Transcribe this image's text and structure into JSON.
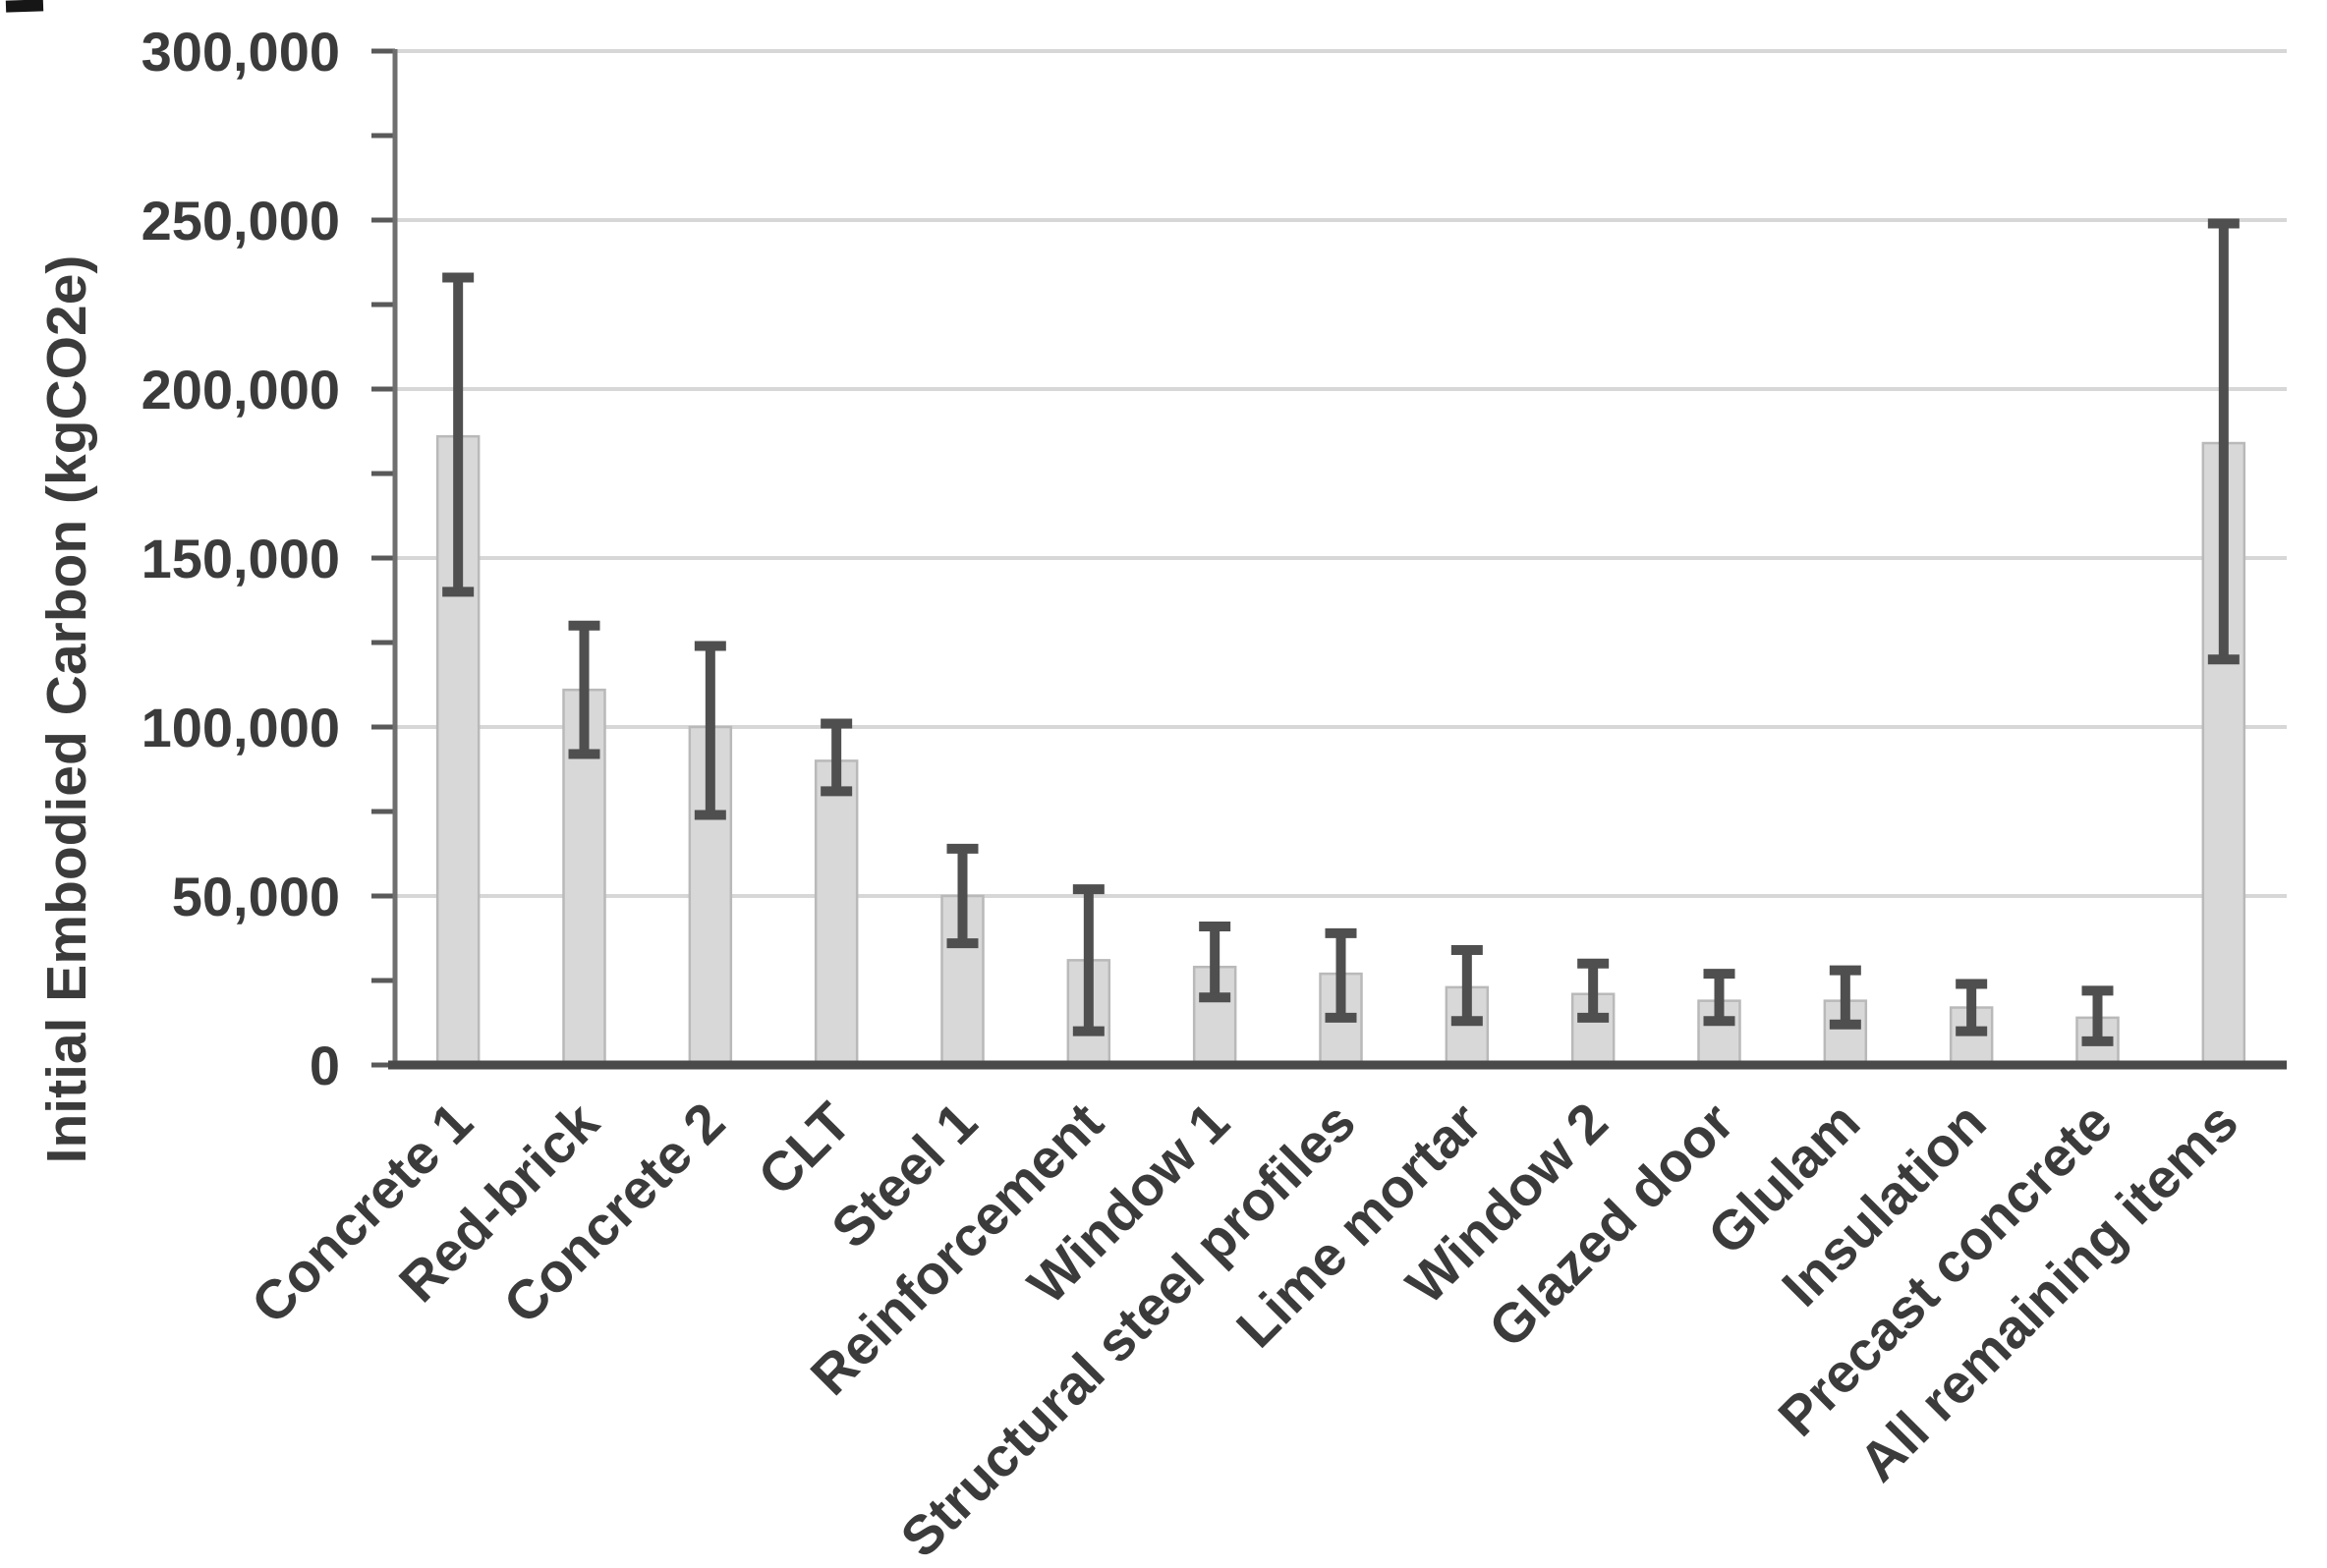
{
  "figure": {
    "kind": "scanned bar chart figure",
    "background": "#ffffff"
  },
  "chart_data": {
    "type": "bar",
    "title": "",
    "xlabel": "",
    "ylabel": "Initial Embodied Carbon (kgCO2e)",
    "ylim": [
      0,
      300000
    ],
    "ytick_interval": 50000,
    "minor_tick_interval": 25000,
    "ytick_labels": [
      "0",
      "50,000",
      "100,000",
      "150,000",
      "200,000",
      "250,000",
      "300,000"
    ],
    "grid": "horizontal gridlines at each 50,000",
    "legend_position": "none",
    "bar_color": "#d8d8d8",
    "bar_border_color": "#b9b9b9",
    "error_bar_color": "#4f4f4f",
    "gridline_color": "#d7d7d7",
    "axis_color": "#4a4a4a",
    "text_color": "#3b3b3b",
    "categories": [
      "Concrete 1",
      "Red-brick",
      "Concrete 2",
      "CLT",
      "Steel 1",
      "Reinforcement",
      "Window 1",
      "Structural steel profiles",
      "Lime mortar",
      "Window 2",
      "Glazed door",
      "Glulam",
      "Insulation",
      "Precast concrete",
      "All remaining items"
    ],
    "values": [
      186000,
      111000,
      100000,
      90000,
      50000,
      31000,
      29000,
      27000,
      23000,
      21000,
      19000,
      19000,
      17000,
      14000,
      184000
    ],
    "error_bars": {
      "low": [
        140000,
        92000,
        74000,
        81000,
        36000,
        10000,
        20000,
        14000,
        13000,
        14000,
        13000,
        12000,
        10000,
        7000,
        120000
      ],
      "high": [
        233000,
        130000,
        124000,
        101000,
        64000,
        52000,
        41000,
        39000,
        34000,
        30000,
        27000,
        28000,
        24000,
        22000,
        249000
      ]
    }
  }
}
